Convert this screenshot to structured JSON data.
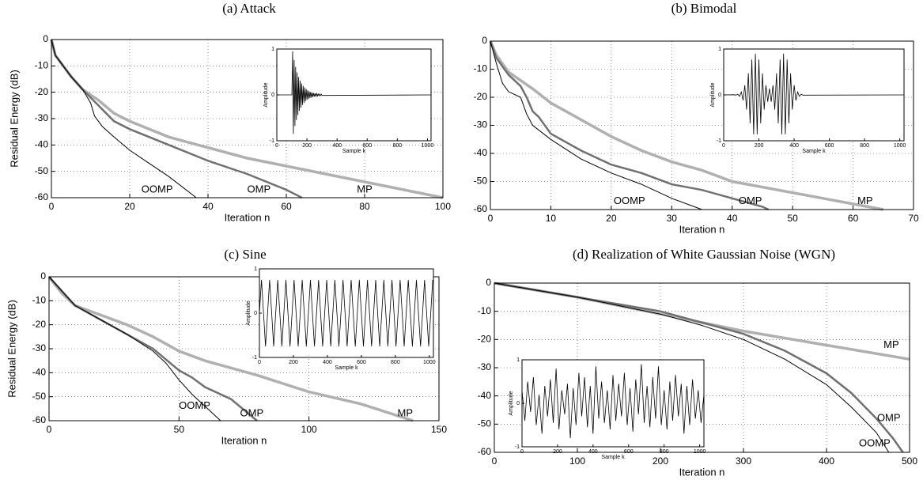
{
  "chart_data": [
    {
      "type": "line",
      "title": "(a) Attack",
      "xlabel": "Iteration n",
      "ylabel": "Residual Energy (dB)",
      "xlim": [
        0,
        100
      ],
      "ylim": [
        -60,
        0
      ],
      "xticks": [
        0,
        20,
        40,
        60,
        80,
        100
      ],
      "yticks": [
        -60,
        -50,
        -40,
        -30,
        -20,
        -10,
        0
      ],
      "grid": true,
      "series": [
        {
          "name": "MP",
          "color": "#b0b0b0",
          "x": [
            0,
            1,
            5,
            8,
            12,
            16,
            20,
            30,
            40,
            50,
            60,
            70,
            80,
            90,
            100
          ],
          "values": [
            0,
            -6,
            -14,
            -19,
            -23,
            -28,
            -31,
            -37,
            -41,
            -45,
            -48,
            -51,
            -54,
            -57,
            -60
          ]
        },
        {
          "name": "OMP",
          "color": "#707070",
          "x": [
            0,
            1,
            5,
            8,
            12,
            16,
            20,
            30,
            40,
            50,
            60,
            64
          ],
          "values": [
            0,
            -6,
            -14,
            -19,
            -25,
            -31,
            -34,
            -40,
            -46,
            -51,
            -57,
            -60
          ]
        },
        {
          "name": "OOMP",
          "color": "#000000",
          "x": [
            0,
            1,
            5,
            8,
            10,
            11,
            13,
            16,
            20,
            25,
            30,
            37
          ],
          "values": [
            0,
            -6,
            -14,
            -19,
            -24,
            -29,
            -33,
            -37,
            -42,
            -47,
            -52,
            -60
          ]
        }
      ],
      "inset": {
        "xlabel": "Sample k",
        "ylabel": "Amplitude",
        "xlim": [
          0,
          1024
        ],
        "ylim": [
          -1,
          1
        ],
        "xticks": [
          0,
          200,
          400,
          600,
          800,
          1000
        ],
        "yticks": [
          -1,
          0,
          1
        ],
        "x": [
          0,
          100,
          105,
          110,
          115,
          120,
          125,
          130,
          135,
          140,
          145,
          150,
          155,
          160,
          165,
          170,
          175,
          180,
          185,
          190,
          195,
          200,
          205,
          210,
          215,
          220,
          225,
          230,
          235,
          240,
          245,
          250,
          255,
          260,
          265,
          270,
          275,
          280,
          285,
          290,
          295,
          300,
          1024
        ],
        "values": [
          0,
          0,
          0.95,
          -0.85,
          0.76,
          -0.68,
          0.61,
          -0.55,
          0.49,
          -0.44,
          0.39,
          -0.35,
          0.31,
          -0.28,
          0.25,
          -0.22,
          0.2,
          -0.18,
          0.16,
          -0.14,
          0.13,
          -0.11,
          0.1,
          -0.09,
          0.08,
          -0.07,
          0.065,
          -0.058,
          0.052,
          -0.046,
          0.041,
          -0.037,
          0.033,
          -0.03,
          0.027,
          -0.024,
          0.021,
          -0.019,
          0.017,
          -0.015,
          0.014,
          -0.012,
          0
        ]
      }
    },
    {
      "type": "line",
      "title": "(b) Bimodal",
      "xlabel": "Iteration n",
      "xlim": [
        0,
        70
      ],
      "ylim": [
        -60,
        0
      ],
      "xticks": [
        0,
        10,
        20,
        30,
        40,
        50,
        60,
        70
      ],
      "yticks": [
        -60,
        -50,
        -40,
        -30,
        -20,
        -10,
        0
      ],
      "grid": true,
      "series": [
        {
          "name": "MP",
          "color": "#b0b0b0",
          "x": [
            0,
            1,
            3,
            5,
            7,
            10,
            15,
            20,
            25,
            30,
            35,
            40,
            50,
            60,
            65
          ],
          "values": [
            0,
            -5,
            -11,
            -14,
            -17,
            -22,
            -28,
            -34,
            -39,
            -43,
            -46,
            -50,
            -54,
            -58,
            -60
          ]
        },
        {
          "name": "OMP",
          "color": "#707070",
          "x": [
            0,
            1,
            3,
            5,
            6,
            7,
            8,
            10,
            15,
            20,
            25,
            30,
            35,
            40,
            45,
            46
          ],
          "values": [
            0,
            -6,
            -12,
            -16,
            -20,
            -25,
            -27,
            -33,
            -39,
            -44,
            -47,
            -51,
            -53,
            -56,
            -59,
            -60
          ]
        },
        {
          "name": "OOMP",
          "color": "#000000",
          "x": [
            0,
            1,
            2,
            3,
            5,
            6,
            7,
            10,
            15,
            20,
            25,
            30,
            35
          ],
          "values": [
            0,
            -8,
            -15,
            -18,
            -20,
            -26,
            -30,
            -35,
            -42,
            -47,
            -51,
            -56,
            -60
          ]
        }
      ],
      "inset": {
        "xlabel": "Sample k",
        "ylabel": "Amplitude",
        "xlim": [
          0,
          1024
        ],
        "ylim": [
          -1,
          1
        ],
        "xticks": [
          0,
          200,
          400,
          600,
          800,
          1000
        ],
        "yticks": [
          -1,
          0,
          1
        ],
        "x": [
          0,
          60,
          70,
          80,
          90,
          100,
          110,
          120,
          130,
          140,
          150,
          160,
          170,
          180,
          190,
          200,
          210,
          220,
          230,
          240,
          250,
          260,
          270,
          280,
          290,
          300,
          310,
          320,
          330,
          340,
          350,
          360,
          370,
          380,
          390,
          400,
          410,
          420,
          430,
          440,
          450,
          1024
        ],
        "values": [
          0,
          0.003,
          -0.006,
          0.015,
          -0.033,
          0.066,
          -0.12,
          0.21,
          -0.32,
          0.47,
          -0.62,
          0.77,
          -0.86,
          0.9,
          -0.86,
          0.77,
          -0.62,
          0.47,
          -0.32,
          0.21,
          -0.15,
          0.14,
          -0.15,
          0.21,
          -0.32,
          0.47,
          -0.62,
          0.77,
          -0.86,
          0.9,
          -0.86,
          0.77,
          -0.62,
          0.47,
          -0.32,
          0.21,
          -0.12,
          0.066,
          -0.033,
          0.015,
          -0.006,
          0
        ]
      }
    },
    {
      "type": "line",
      "title": "(c) Sine",
      "xlabel": "Iteration n",
      "ylabel": "Residual Energy (dB)",
      "xlim": [
        0,
        150
      ],
      "ylim": [
        -60,
        0
      ],
      "xticks": [
        0,
        50,
        100,
        150
      ],
      "yticks": [
        -60,
        -50,
        -40,
        -30,
        -20,
        -10,
        0
      ],
      "grid": true,
      "series": [
        {
          "name": "MP",
          "color": "#b0b0b0",
          "x": [
            0,
            5,
            10,
            20,
            30,
            40,
            50,
            60,
            80,
            100,
            120,
            140
          ],
          "values": [
            0,
            -7,
            -12,
            -16,
            -20,
            -25,
            -31,
            -35,
            -41,
            -48,
            -53,
            -60
          ]
        },
        {
          "name": "OMP",
          "color": "#707070",
          "x": [
            0,
            5,
            10,
            20,
            30,
            40,
            50,
            55,
            60,
            70,
            80
          ],
          "values": [
            0,
            -6,
            -12,
            -18,
            -24,
            -30,
            -39,
            -42,
            -46,
            -51,
            -60
          ]
        },
        {
          "name": "OOMP",
          "color": "#000000",
          "x": [
            0,
            5,
            10,
            20,
            30,
            40,
            45,
            50,
            55,
            60,
            66
          ],
          "values": [
            0,
            -6,
            -12,
            -18,
            -24,
            -31,
            -36,
            -43,
            -49,
            -54,
            -60
          ]
        }
      ],
      "inset": {
        "xlabel": "Sample k",
        "ylabel": "Amplitude",
        "xlim": [
          0,
          1024
        ],
        "ylim": [
          -1,
          1
        ],
        "xticks": [
          0,
          200,
          400,
          600,
          800,
          1000
        ],
        "yticks": [
          -1,
          0,
          1
        ],
        "x": [
          0,
          12,
          24,
          36,
          48,
          60,
          72,
          84,
          96,
          108,
          120,
          132,
          144,
          156,
          168,
          180,
          192,
          204,
          216,
          228,
          240,
          252,
          264,
          276,
          288,
          300,
          312,
          324,
          336,
          348,
          360,
          372,
          384,
          396,
          408,
          420,
          432,
          444,
          456,
          468,
          480,
          492,
          504,
          516,
          528,
          540,
          552,
          564,
          576,
          588,
          600,
          612,
          624,
          636,
          648,
          660,
          672,
          684,
          696,
          708,
          720,
          732,
          744,
          756,
          768,
          780,
          792,
          804,
          816,
          828,
          840,
          852,
          864,
          876,
          888,
          900,
          912,
          924,
          936,
          948,
          960,
          972,
          984,
          996,
          1008,
          1020
        ],
        "values": [
          0,
          0.75,
          0,
          -0.75,
          0,
          0.75,
          0,
          -0.75,
          0,
          0.75,
          0,
          -0.75,
          0,
          0.75,
          0,
          -0.75,
          0,
          0.75,
          0,
          -0.75,
          0,
          0.75,
          0,
          -0.75,
          0,
          0.75,
          0,
          -0.75,
          0,
          0.75,
          0,
          -0.75,
          0,
          0.75,
          0,
          -0.75,
          0,
          0.75,
          0,
          -0.75,
          0,
          0.75,
          0,
          -0.75,
          0,
          0.75,
          0,
          -0.75,
          0,
          0.75,
          0,
          -0.75,
          0,
          0.75,
          0,
          -0.75,
          0,
          0.75,
          0,
          -0.75,
          0,
          0.75,
          0,
          -0.75,
          0,
          0.75,
          0,
          -0.75,
          0,
          0.75,
          0,
          -0.75,
          0,
          0.75,
          0,
          -0.75,
          0,
          0.75,
          0,
          -0.75,
          0,
          0.75,
          0,
          -0.75,
          0,
          0.75
        ]
      }
    },
    {
      "type": "line",
      "title": "(d) Realization of White Gaussian Noise (WGN)",
      "xlabel": "Iteration n",
      "xlim": [
        0,
        500
      ],
      "ylim": [
        -60,
        0
      ],
      "xticks": [
        0,
        100,
        200,
        300,
        400,
        500
      ],
      "yticks": [
        -60,
        -50,
        -40,
        -30,
        -20,
        -10,
        0
      ],
      "grid": true,
      "series": [
        {
          "name": "MP",
          "color": "#b0b0b0",
          "x": [
            0,
            100,
            200,
            300,
            400,
            500
          ],
          "values": [
            0,
            -5,
            -11,
            -17,
            -22,
            -27
          ]
        },
        {
          "name": "OMP",
          "color": "#707070",
          "x": [
            0,
            100,
            200,
            250,
            300,
            350,
            400,
            430,
            460,
            480,
            492
          ],
          "values": [
            0,
            -5,
            -10,
            -14,
            -18,
            -24,
            -32,
            -39,
            -48,
            -55,
            -60
          ]
        },
        {
          "name": "OOMP",
          "color": "#000000",
          "x": [
            0,
            100,
            200,
            250,
            300,
            350,
            400,
            430,
            460,
            475
          ],
          "values": [
            0,
            -5,
            -11,
            -15,
            -20,
            -27,
            -36,
            -44,
            -53,
            -60
          ]
        }
      ],
      "inset": {
        "xlabel": "Sample k",
        "ylabel": "Amplitude",
        "xlim": [
          0,
          1024
        ],
        "ylim": [
          -1,
          1
        ],
        "xticks": [
          0,
          200,
          400,
          600,
          800,
          1000
        ],
        "yticks": [
          -1,
          0,
          1
        ],
        "x": [
          0,
          16,
          32,
          48,
          64,
          80,
          96,
          112,
          128,
          144,
          160,
          176,
          192,
          208,
          224,
          240,
          256,
          272,
          288,
          304,
          320,
          336,
          352,
          368,
          384,
          400,
          416,
          432,
          448,
          464,
          480,
          496,
          512,
          528,
          544,
          560,
          576,
          592,
          608,
          624,
          640,
          656,
          672,
          688,
          704,
          720,
          736,
          752,
          768,
          784,
          800,
          816,
          832,
          848,
          864,
          880,
          896,
          912,
          928,
          944,
          960,
          976,
          992,
          1008,
          1024
        ],
        "values": [
          0.3,
          -0.4,
          0.5,
          -0.2,
          0.6,
          -0.5,
          0.2,
          -0.7,
          0.4,
          -0.3,
          0.55,
          -0.45,
          0.8,
          -0.6,
          0.3,
          -0.25,
          0.45,
          -0.8,
          0.35,
          -0.5,
          0.7,
          -0.3,
          0.6,
          -0.55,
          0.4,
          -0.7,
          0.85,
          -0.35,
          0.5,
          -0.45,
          0.3,
          -0.6,
          0.65,
          -0.4,
          0.45,
          -0.3,
          0.7,
          -0.5,
          0.35,
          -0.65,
          0.55,
          -0.25,
          0.9,
          -0.45,
          0.4,
          -0.55,
          0.6,
          -0.35,
          0.85,
          -0.5,
          0.3,
          -0.6,
          0.5,
          -0.4,
          0.65,
          -0.3,
          0.45,
          -0.7,
          0.4,
          -0.5,
          0.55,
          -0.35,
          0.3,
          -0.45,
          0.2
        ]
      }
    }
  ]
}
